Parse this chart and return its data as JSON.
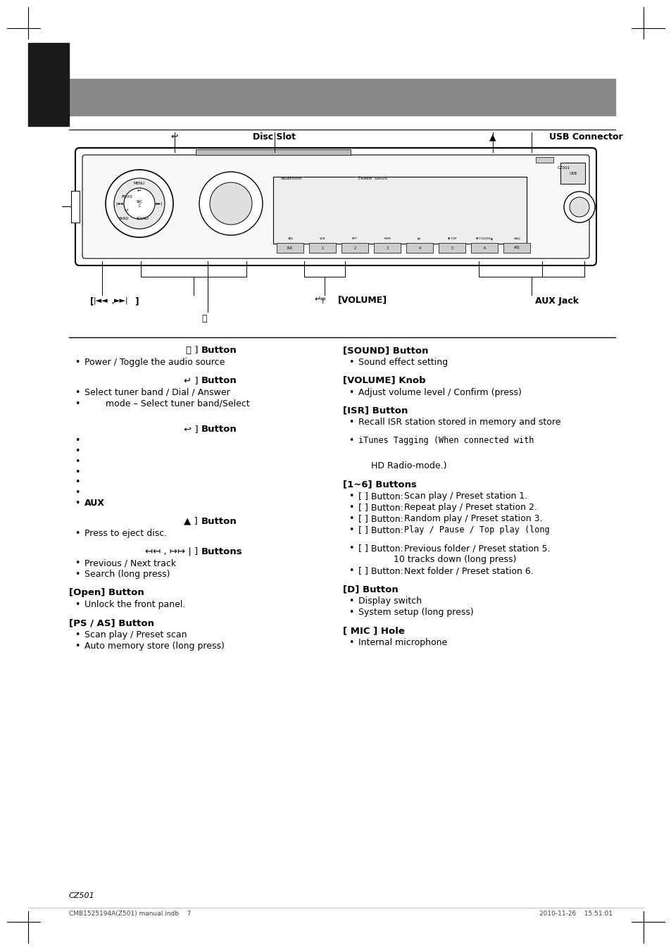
{
  "bg_color": "#ffffff",
  "header_bar_color": "#888888",
  "black_tab_color": "#1a1a1a",
  "footer_text": "CZ501",
  "footer_print": "CMB1525194A(Z501) manual.indb    7",
  "footer_date": "2010-11-26    15:51:01",
  "left_col": [
    {
      "type": "heading_center",
      "sym": "⏻",
      "label": "Button"
    },
    {
      "type": "bullet",
      "text": "Power / Toggle the audio source"
    },
    {
      "type": "gap"
    },
    {
      "type": "heading_center",
      "sym": "↵",
      "label": "Button"
    },
    {
      "type": "bullet",
      "text": "Select tuner band / Dial / Answer"
    },
    {
      "type": "bullet_indent",
      "text": "mode – Select tuner band/Select"
    },
    {
      "type": "gap"
    },
    {
      "type": "gap"
    },
    {
      "type": "heading_center",
      "sym": "↩",
      "label": "Button"
    },
    {
      "type": "bullet_empty"
    },
    {
      "type": "bullet_empty"
    },
    {
      "type": "bullet_empty"
    },
    {
      "type": "bullet_empty"
    },
    {
      "type": "bullet_empty"
    },
    {
      "type": "bullet_empty"
    },
    {
      "type": "bullet_bold",
      "text": "AUX"
    },
    {
      "type": "gap"
    },
    {
      "type": "heading_center",
      "sym": "▲",
      "label": "Button"
    },
    {
      "type": "bullet",
      "text": "Press to eject disc."
    },
    {
      "type": "gap"
    },
    {
      "type": "heading_center_prefix",
      "prefix": "|",
      "sym": "↤↤ , ↦↦ |",
      "label": "Buttons"
    },
    {
      "type": "bullet",
      "text": "Previous / Next track"
    },
    {
      "type": "bullet",
      "text": "Search (long press)"
    },
    {
      "type": "gap"
    },
    {
      "type": "heading_left_bold",
      "text": "[Open] Button"
    },
    {
      "type": "bullet",
      "text": "Unlock the front panel."
    },
    {
      "type": "gap"
    },
    {
      "type": "heading_left_bold",
      "text": "[PS / AS] Button"
    },
    {
      "type": "bullet",
      "text": "Scan play / Preset scan"
    },
    {
      "type": "bullet",
      "text": "Auto memory store (long press)"
    }
  ],
  "right_col": [
    {
      "type": "heading_left_bold",
      "text": "[SOUND] Button"
    },
    {
      "type": "bullet",
      "text": "Sound effect setting"
    },
    {
      "type": "gap"
    },
    {
      "type": "heading_left_bold",
      "text": "[VOLUME] Knob"
    },
    {
      "type": "bullet",
      "text": "Adjust volume level / Confirm (press)"
    },
    {
      "type": "gap"
    },
    {
      "type": "heading_left_bold",
      "text": "[ISR] Button"
    },
    {
      "type": "bullet",
      "text": "Recall ISR station stored in memory and store"
    },
    {
      "type": "gap"
    },
    {
      "type": "bullet_mono",
      "text": "iTunes Tagging (When connected with"
    },
    {
      "type": "gap"
    },
    {
      "type": "gap"
    },
    {
      "type": "plain_indent",
      "text": "HD Radio-mode.)"
    },
    {
      "type": "gap"
    },
    {
      "type": "heading_left_bold",
      "text": "[1~6] Buttons"
    },
    {
      "type": "bullet_colon",
      "pre": "[ ] Button:",
      "post": "Scan play / Preset station 1."
    },
    {
      "type": "bullet_colon",
      "pre": "[ ] Button:",
      "post": "Repeat play / Preset station 2."
    },
    {
      "type": "bullet_colon",
      "pre": "[ ] Button:",
      "post": "Random play / Preset station 3."
    },
    {
      "type": "bullet_colon_mono",
      "pre": "[ ] Button:",
      "post": "Play / Pause / Top play (long"
    },
    {
      "type": "gap"
    },
    {
      "type": "bullet_colon",
      "pre": "[ ] Button:",
      "post": "Previous folder / Preset station 5."
    },
    {
      "type": "plain_deep_indent",
      "text": "10 tracks down (long press)"
    },
    {
      "type": "bullet_colon",
      "pre": "[ ] Button:",
      "post": "Next folder / Preset station 6."
    },
    {
      "type": "gap"
    },
    {
      "type": "heading_left_bold",
      "text": "[D] Button"
    },
    {
      "type": "bullet",
      "text": "Display switch"
    },
    {
      "type": "bullet",
      "text": "System setup (long press)"
    },
    {
      "type": "gap"
    },
    {
      "type": "heading_left_bold",
      "text": "[ MIC ] Hole"
    },
    {
      "type": "bullet",
      "text": "Internal microphone"
    }
  ]
}
